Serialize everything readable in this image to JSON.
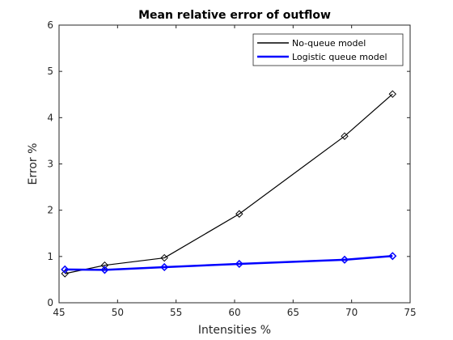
{
  "chart_data": {
    "type": "line",
    "title": "Mean relative error of outflow",
    "xlabel": "Intensities %",
    "ylabel": "Error %",
    "xlim": [
      45,
      75
    ],
    "ylim": [
      0,
      6
    ],
    "xticks": [
      45,
      50,
      55,
      60,
      65,
      70,
      75
    ],
    "yticks": [
      0,
      1,
      2,
      3,
      4,
      5,
      6
    ],
    "grid": false,
    "legend_position": "top-right",
    "series": [
      {
        "name": "No-queue model",
        "color": "#000000",
        "marker": "diamond",
        "x": [
          45.5,
          48.9,
          54.0,
          60.4,
          69.4,
          73.5
        ],
        "y": [
          0.63,
          0.81,
          0.97,
          1.92,
          3.6,
          4.51
        ]
      },
      {
        "name": "Logistic queue model",
        "color": "#0000ff",
        "marker": "diamond",
        "x": [
          45.5,
          48.9,
          54.0,
          60.4,
          69.4,
          73.5
        ],
        "y": [
          0.72,
          0.71,
          0.77,
          0.84,
          0.93,
          1.01
        ]
      }
    ]
  }
}
